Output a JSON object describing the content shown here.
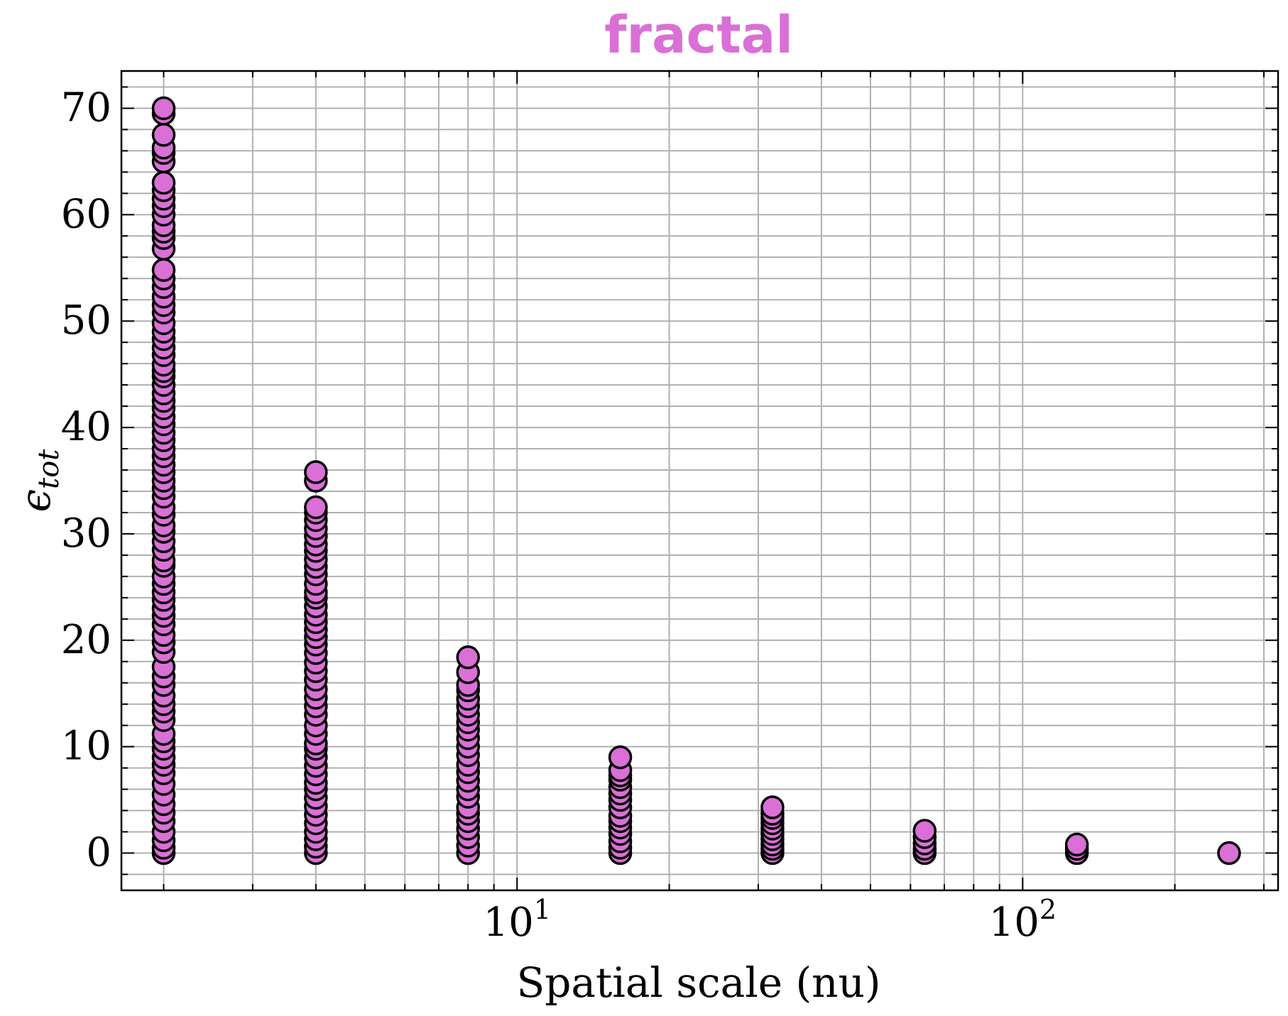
{
  "chart_data": {
    "type": "scatter",
    "title": "fractal",
    "xlabel": "Spatial scale (nu)",
    "ylabel": "ϵ",
    "ylabel_sub": "tot",
    "x_scale": "log",
    "xlim": [
      1.65,
      320
    ],
    "ylim": [
      -3.5,
      73.5
    ],
    "y_ticks": [
      0,
      10,
      20,
      30,
      40,
      50,
      60,
      70
    ],
    "x_ticks": [
      {
        "value": 10,
        "base": "10",
        "exp": "1"
      },
      {
        "value": 100,
        "base": "10",
        "exp": "2"
      }
    ],
    "grid": true,
    "marker_color": "#da70d6",
    "marker_edge": "#000000",
    "title_color": "#da70d6",
    "groups": [
      {
        "x": 2,
        "y": [
          0,
          0.5,
          1.2,
          2,
          3,
          3.8,
          4.6,
          5.5,
          6.5,
          7.5,
          8.3,
          9,
          9.8,
          10.5,
          11.2,
          12.5,
          13.3,
          14,
          14.8,
          15.8,
          16.6,
          17.5,
          18.9,
          19.8,
          20.5,
          21.5,
          22.3,
          23,
          23.8,
          24.5,
          25.3,
          26,
          27,
          27.5,
          28.5,
          29.3,
          30.2,
          30.8,
          31.8,
          32.5,
          33.5,
          34.3,
          35,
          35.8,
          36.5,
          37.3,
          38,
          38.8,
          39.5,
          40.3,
          41,
          41.8,
          42.5,
          43.2,
          44,
          44.8,
          45.3,
          45.9,
          46.8,
          47.5,
          48.3,
          49,
          49.8,
          50.8,
          51.5,
          52.3,
          53.2,
          54,
          54.8,
          56.8,
          57.8,
          58.4,
          59,
          60,
          60.8,
          61.5,
          62.3,
          63,
          65,
          65.8,
          66.3,
          67.5,
          69.5,
          70
        ]
      },
      {
        "x": 4,
        "y": [
          0,
          0.6,
          1.3,
          2,
          2.8,
          3.6,
          4.4,
          5.2,
          6,
          6.6,
          7.4,
          8.2,
          9,
          9.8,
          10.3,
          11.2,
          12,
          13,
          13.8,
          14.6,
          15.4,
          16.3,
          17.1,
          17.9,
          18.8,
          19.6,
          20.3,
          21,
          21.7,
          22.4,
          23.2,
          24,
          24.5,
          25.3,
          26.2,
          26.9,
          27.6,
          28.4,
          29,
          29.8,
          30.5,
          31.3,
          32,
          32.5,
          35,
          35.8
        ]
      },
      {
        "x": 8,
        "y": [
          0,
          0.7,
          1.5,
          2.3,
          3,
          3.7,
          4.3,
          5.3,
          6,
          6.8,
          7.6,
          8.3,
          9.2,
          10,
          10.8,
          11.6,
          12.3,
          13,
          13.8,
          14.5,
          15.3,
          15.8,
          17,
          18.4
        ]
      },
      {
        "x": 16,
        "y": [
          0,
          0.5,
          1.1,
          1.8,
          2.4,
          3,
          3.5,
          4.3,
          5,
          5.6,
          6.2,
          6.9,
          7.3,
          7.8,
          9
        ]
      },
      {
        "x": 32,
        "y": [
          0,
          0.4,
          0.8,
          1.3,
          1.8,
          2.3,
          2.8,
          3.3,
          3.7,
          4.3
        ]
      },
      {
        "x": 64,
        "y": [
          0,
          0.4,
          0.9,
          1.5,
          2.1
        ]
      },
      {
        "x": 128,
        "y": [
          0,
          0.4,
          0.8
        ]
      },
      {
        "x": 256,
        "y": [
          0
        ]
      }
    ]
  }
}
